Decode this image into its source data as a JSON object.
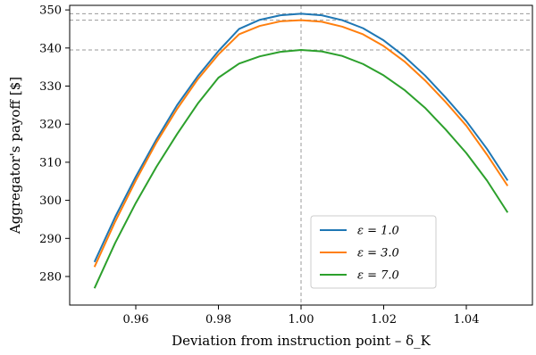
{
  "chart_data": {
    "type": "line",
    "title": "",
    "xlabel": "Deviation from instruction point – δ_K",
    "ylabel": "Aggregator's payoff [$]",
    "xlim": [
      0.944,
      1.056
    ],
    "ylim": [
      272.5,
      351.2
    ],
    "xticks": [
      0.96,
      0.98,
      1.0,
      1.02,
      1.04
    ],
    "xtick_labels": [
      "0.96",
      "0.98",
      "1.00",
      "1.02",
      "1.04"
    ],
    "yticks": [
      280,
      290,
      300,
      310,
      320,
      330,
      340,
      350
    ],
    "ytick_labels": [
      "280",
      "290",
      "300",
      "310",
      "320",
      "330",
      "340",
      "350"
    ],
    "grid": false,
    "legend_position": "lower-right",
    "x": [
      0.95,
      0.955,
      0.96,
      0.965,
      0.97,
      0.975,
      0.98,
      0.985,
      0.99,
      0.995,
      1.0,
      1.005,
      1.01,
      1.015,
      1.02,
      1.025,
      1.03,
      1.035,
      1.04,
      1.045,
      1.05
    ],
    "series": [
      {
        "name": "ε = 1.0",
        "color": "#1f77b4",
        "values": [
          283.8,
          295.6,
          306.2,
          316.0,
          325.0,
          332.6,
          339.2,
          345.0,
          347.4,
          348.6,
          349.0,
          348.6,
          347.3,
          345.2,
          342.0,
          337.8,
          332.8,
          327.0,
          320.8,
          313.5,
          305.2
        ]
      },
      {
        "name": "ε = 3.0",
        "color": "#ff7f0e",
        "values": [
          282.5,
          294.4,
          305.2,
          315.2,
          324.0,
          331.8,
          338.3,
          343.6,
          345.8,
          347.0,
          347.3,
          346.9,
          345.6,
          343.6,
          340.5,
          336.5,
          331.5,
          325.8,
          319.6,
          312.0,
          303.8
        ]
      },
      {
        "name": "ε = 7.0",
        "color": "#2ca02c",
        "values": [
          276.9,
          288.8,
          299.3,
          308.8,
          317.4,
          325.4,
          332.2,
          335.9,
          337.8,
          339.0,
          339.5,
          339.1,
          337.9,
          335.8,
          332.8,
          329.0,
          324.3,
          318.6,
          312.4,
          305.2,
          296.8
        ]
      }
    ],
    "reference_lines": {
      "vertical_x": 1.0,
      "horizontal_y": [
        349.0,
        347.3,
        339.5
      ]
    }
  }
}
